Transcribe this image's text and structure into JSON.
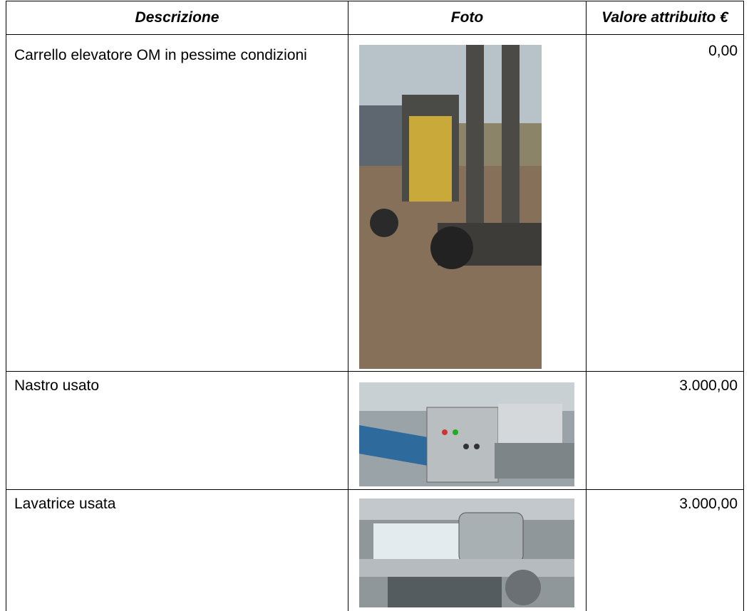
{
  "table": {
    "header": [
      "Descrizione",
      "Foto",
      "Valore attribuito €"
    ],
    "rows": [
      [
        "Carrello elevatore OM in pessime condizioni",
        "0,00"
      ],
      [
        "Nastro usato",
        "3.000,00"
      ],
      [
        "Lavatrice usata",
        "3.000,00"
      ]
    ]
  }
}
